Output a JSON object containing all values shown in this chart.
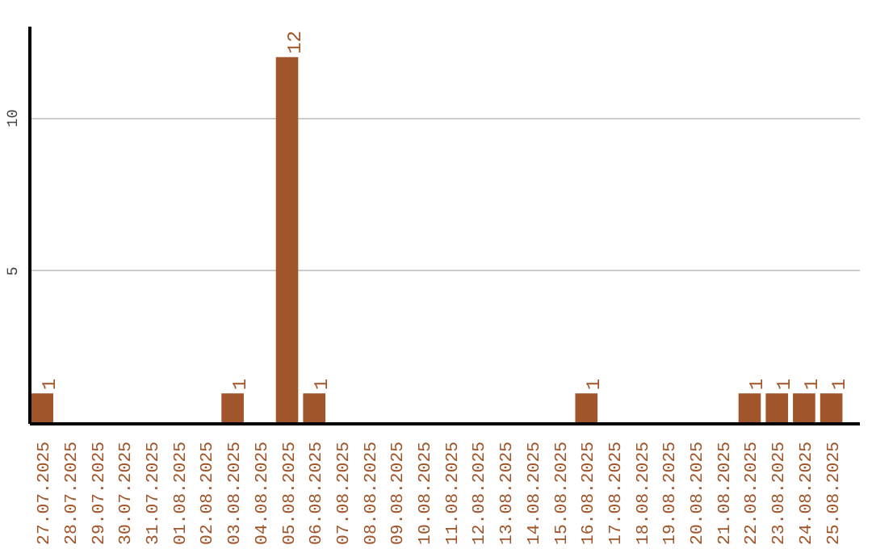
{
  "chart_data": {
    "type": "bar",
    "categories": [
      "27.07.2025",
      "28.07.2025",
      "29.07.2025",
      "30.07.2025",
      "31.07.2025",
      "01.08.2025",
      "02.08.2025",
      "03.08.2025",
      "04.08.2025",
      "05.08.2025",
      "06.08.2025",
      "07.08.2025",
      "08.08.2025",
      "09.08.2025",
      "10.08.2025",
      "11.08.2025",
      "12.08.2025",
      "13.08.2025",
      "14.08.2025",
      "15.08.2025",
      "16.08.2025",
      "17.08.2025",
      "18.08.2025",
      "19.08.2025",
      "20.08.2025",
      "21.08.2025",
      "22.08.2025",
      "23.08.2025",
      "24.08.2025",
      "25.08.2025"
    ],
    "values": [
      1,
      0,
      0,
      0,
      0,
      0,
      0,
      1,
      0,
      12,
      1,
      0,
      0,
      0,
      0,
      0,
      0,
      0,
      0,
      0,
      1,
      0,
      0,
      0,
      0,
      0,
      1,
      1,
      1,
      1
    ],
    "value_labels": [
      "1",
      null,
      null,
      null,
      null,
      null,
      null,
      "1",
      null,
      "12",
      "1",
      null,
      null,
      null,
      null,
      null,
      null,
      null,
      null,
      null,
      "1",
      null,
      null,
      null,
      null,
      null,
      "1",
      "1",
      "1",
      "1"
    ],
    "color": "#a0562a",
    "ylim": [
      0,
      13
    ],
    "yticks": [
      5,
      10
    ],
    "grid": "y"
  }
}
